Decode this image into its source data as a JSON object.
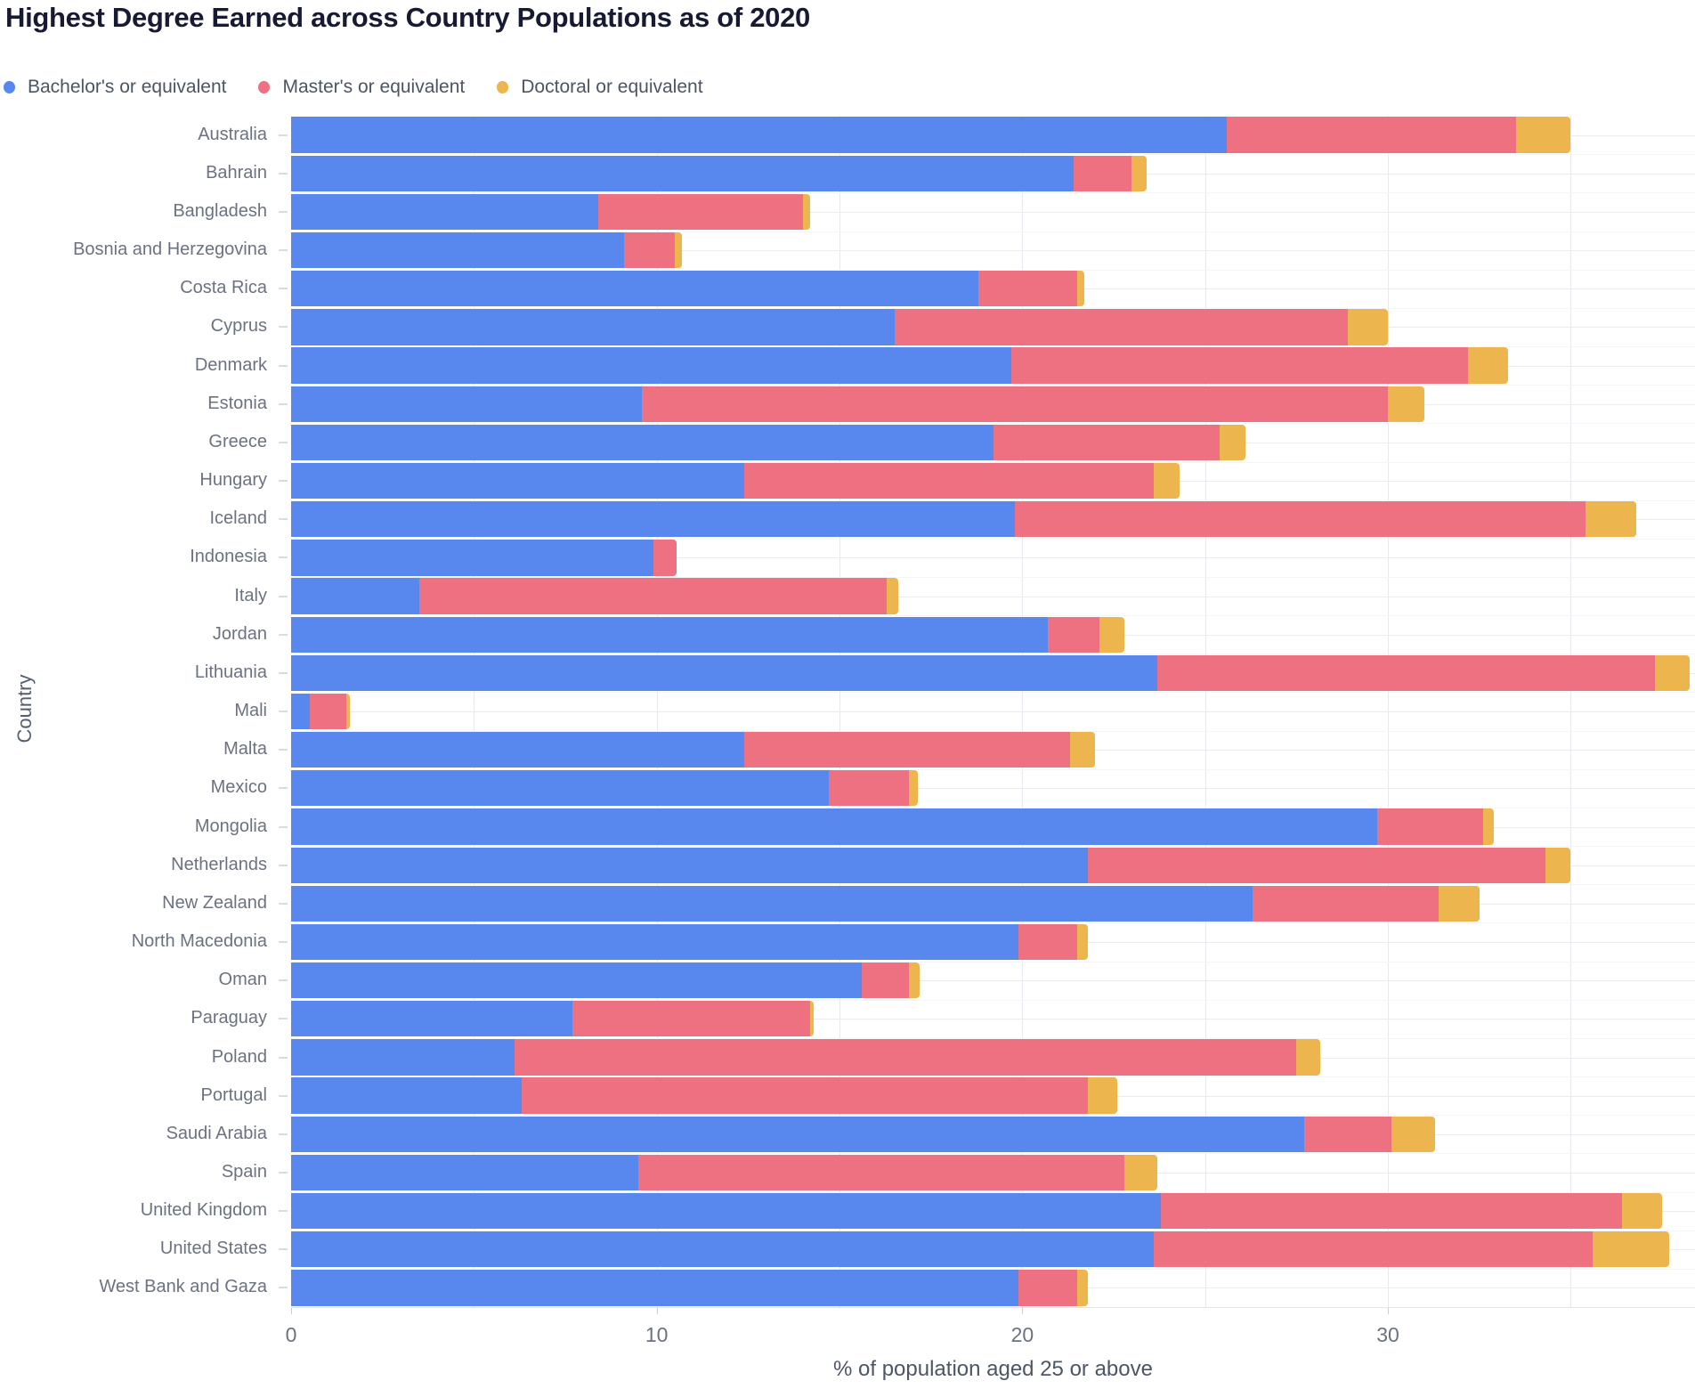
{
  "title": "Highest Degree Earned across Country Populations as of 2020",
  "legend": [
    {
      "label": "Bachelor's or equivalent",
      "color": "#5888EE"
    },
    {
      "label": "Master's or equivalent",
      "color": "#EE7181"
    },
    {
      "label": "Doctoral or equivalent",
      "color": "#ECB54D"
    }
  ],
  "xlabel": "% of population aged 25 or above",
  "ylabel": "Country",
  "colors": {
    "bachelor": "#5888EE",
    "master": "#EE7181",
    "doctoral": "#ECB54D",
    "title_text": "#161a32",
    "axis_text": "#6b7280",
    "gridline": "#e7e9f0"
  },
  "chart_data": {
    "type": "bar",
    "orientation": "horizontal",
    "stacked": true,
    "title": "Highest Degree Earned across Country Populations as of 2020",
    "xlabel": "% of population aged 25 or above",
    "ylabel": "Country",
    "legend_position": "top",
    "grid": "vertical every 5",
    "xlim": [
      0,
      38.4
    ],
    "x_ticks": [
      0,
      10,
      20,
      30
    ],
    "categories": [
      "Australia",
      "Bahrain",
      "Bangladesh",
      "Bosnia and Herzegovina",
      "Costa Rica",
      "Cyprus",
      "Denmark",
      "Estonia",
      "Greece",
      "Hungary",
      "Iceland",
      "Indonesia",
      "Italy",
      "Jordan",
      "Lithuania",
      "Mali",
      "Malta",
      "Mexico",
      "Mongolia",
      "Netherlands",
      "New Zealand",
      "North Macedonia",
      "Oman",
      "Paraguay",
      "Poland",
      "Portugal",
      "Saudi Arabia",
      "Spain",
      "United Kingdom",
      "United States",
      "West Bank and Gaza"
    ],
    "series": [
      {
        "name": "Bachelor's or equivalent",
        "color": "#5888EE",
        "values": [
          25.6,
          21.4,
          8.4,
          9.1,
          18.8,
          16.5,
          19.7,
          9.6,
          19.2,
          12.4,
          19.8,
          9.9,
          3.5,
          20.7,
          23.7,
          0.5,
          12.4,
          14.7,
          29.7,
          21.8,
          26.3,
          19.9,
          15.6,
          7.7,
          6.1,
          6.3,
          27.7,
          9.5,
          23.8,
          23.6,
          19.9
        ]
      },
      {
        "name": "Master's or equivalent",
        "color": "#EE7181",
        "values": [
          7.9,
          1.6,
          5.6,
          1.4,
          2.7,
          12.4,
          12.5,
          20.4,
          6.2,
          11.2,
          15.6,
          0.65,
          12.8,
          1.4,
          13.6,
          1.0,
          8.9,
          2.2,
          2.9,
          12.5,
          5.1,
          1.6,
          1.3,
          6.5,
          21.4,
          15.5,
          2.4,
          13.3,
          12.6,
          12.0,
          1.6
        ]
      },
      {
        "name": "Doctoral or equivalent",
        "color": "#ECB54D",
        "values": [
          1.5,
          0.4,
          0.2,
          0.2,
          0.2,
          1.1,
          1.1,
          1.0,
          0.7,
          0.7,
          1.4,
          0,
          0.3,
          0.7,
          0.95,
          0.1,
          0.7,
          0.25,
          0.3,
          0.7,
          1.1,
          0.3,
          0.3,
          0.1,
          0.65,
          0.8,
          1.2,
          0.9,
          1.1,
          2.1,
          0.3
        ]
      }
    ]
  }
}
